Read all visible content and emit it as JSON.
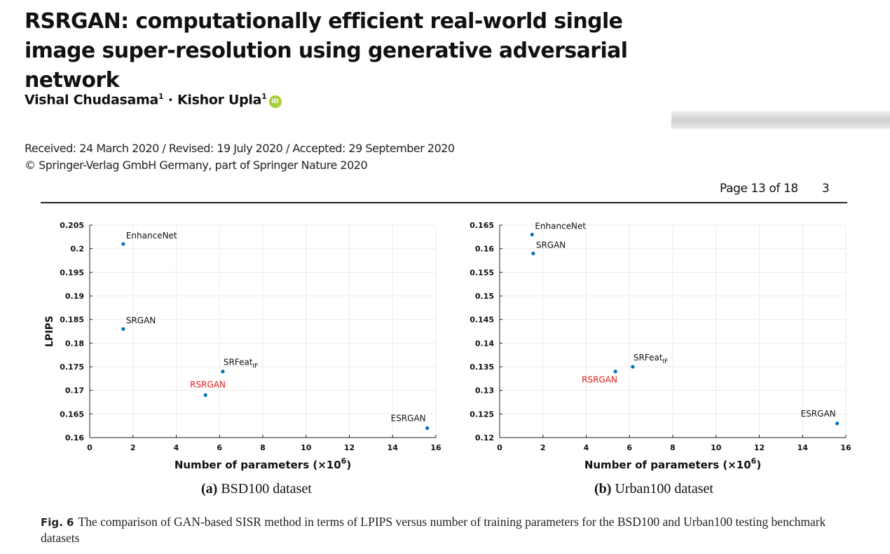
{
  "title": "RSRGAN: computationally efficient real-world single image super-resolution using generative adversarial network",
  "authors": [
    {
      "name": "Vishal Chudasama",
      "affiliation": "1"
    },
    {
      "name": "Kishor Upla",
      "affiliation": "1"
    }
  ],
  "author_separator": "·",
  "orcid_icon": "iD",
  "dates": "Received: 24 March 2020 / Revised: 19 July 2020 / Accepted: 29 September 2020",
  "copyright": "© Springer-Verlag GmbH Germany, part of Springer Nature 2020",
  "page_label": "Page 13 of 18",
  "page_number": "3",
  "colors": {
    "point": "#0072bd",
    "highlight": "#e31a1c",
    "axis": "#222222",
    "grid": "#ebebeb"
  },
  "chart_data": [
    {
      "type": "scatter",
      "caption_label": "(a)",
      "caption_text": "BSD100 dataset",
      "ylabel": "LPIPS",
      "xlabel": "Number of parameters (×10^6)",
      "xlim": [
        0,
        16
      ],
      "ylim": [
        0.16,
        0.205
      ],
      "xticks": [
        "0",
        "2",
        "4",
        "6",
        "8",
        "10",
        "12",
        "14",
        "16"
      ],
      "yticks": [
        "0.16",
        "0.165",
        "0.17",
        "0.175",
        "0.18",
        "0.185",
        "0.19",
        "0.195",
        "0.2",
        "0.205"
      ],
      "grid": true,
      "points": [
        {
          "label": "EnhanceNet",
          "x": 1.55,
          "y": 0.201
        },
        {
          "label": "SRGAN",
          "x": 1.55,
          "y": 0.183
        },
        {
          "label": "SRFeat",
          "sub": "IF",
          "x": 6.15,
          "y": 0.174
        },
        {
          "label": "RSRGAN",
          "x": 5.35,
          "y": 0.169,
          "highlight": true
        },
        {
          "label": "ESRGAN",
          "x": 15.6,
          "y": 0.162
        }
      ]
    },
    {
      "type": "scatter",
      "caption_label": "(b)",
      "caption_text": "Urban100 dataset",
      "ylabel": "",
      "xlabel": "Number of parameters (×10^6)",
      "xlim": [
        0,
        16
      ],
      "ylim": [
        0.12,
        0.165
      ],
      "xticks": [
        "0",
        "2",
        "4",
        "6",
        "8",
        "10",
        "12",
        "14",
        "16"
      ],
      "yticks": [
        "0.12",
        "0.125",
        "0.13",
        "0.135",
        "0.14",
        "0.145",
        "0.15",
        "0.155",
        "0.16",
        "0.165"
      ],
      "grid": true,
      "points": [
        {
          "label": "EnhanceNet",
          "x": 1.5,
          "y": 0.163
        },
        {
          "label": "SRGAN",
          "x": 1.55,
          "y": 0.159
        },
        {
          "label": "SRFeat",
          "sub": "IF",
          "x": 6.15,
          "y": 0.135
        },
        {
          "label": "RSRGAN",
          "x": 5.35,
          "y": 0.134,
          "highlight": true
        },
        {
          "label": "ESRGAN",
          "x": 15.6,
          "y": 0.123
        }
      ]
    }
  ],
  "figure_caption": {
    "label": "Fig. 6",
    "text": "The comparison of GAN-based SISR method in terms of LPIPS versus number of training parameters for the BSD100 and Urban100 testing benchmark datasets"
  }
}
